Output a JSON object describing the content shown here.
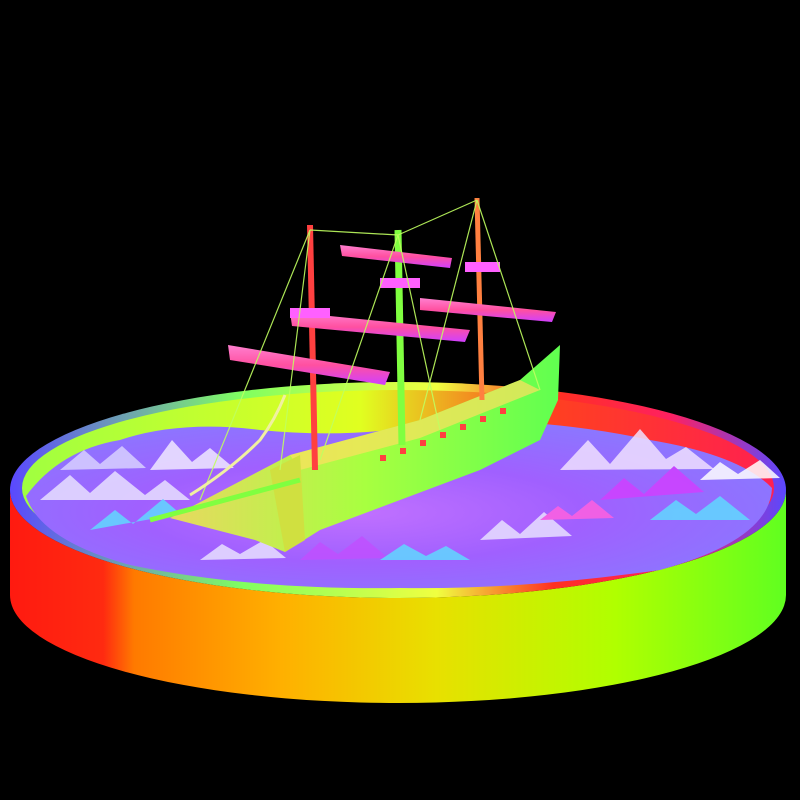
{
  "scene": {
    "subject": "ship-in-sea-diorama",
    "render_style": "surface-normal-shading",
    "colors": {
      "background": "#000000",
      "rim_red": "#ff1a10",
      "rim_orange": "#ff9a00",
      "rim_yellow": "#e8e000",
      "rim_green": "#7dff10",
      "rim_edge_blue": "#5a48ff",
      "water_purple": "#a060ff",
      "water_magenta": "#d040ff",
      "water_cyan": "#60d8ff",
      "water_white": "#f0e8ff",
      "hull_green": "#7dff30",
      "hull_yellow": "#e8d860",
      "sail_magenta": "#ff60c0",
      "mast_red": "#ff4040"
    },
    "icons": [
      "sea-water-icon",
      "galleon-ship-icon",
      "diorama-base-icon"
    ]
  }
}
